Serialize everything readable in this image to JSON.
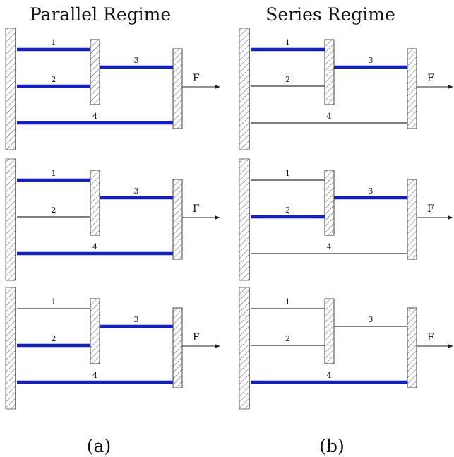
{
  "columns": [
    {
      "title": "Parallel Regime",
      "caption": "(a)",
      "panels": [
        {
          "bars": [
            {
              "label": "1",
              "active": true
            },
            {
              "label": "2",
              "active": true
            },
            {
              "label": "3",
              "active": true
            },
            {
              "label": "4",
              "active": true
            }
          ],
          "force_label": "F"
        },
        {
          "bars": [
            {
              "label": "1",
              "active": true
            },
            {
              "label": "2",
              "active": false
            },
            {
              "label": "3",
              "active": true
            },
            {
              "label": "4",
              "active": true
            }
          ],
          "force_label": "F"
        },
        {
          "bars": [
            {
              "label": "1",
              "active": false
            },
            {
              "label": "2",
              "active": true
            },
            {
              "label": "3",
              "active": true
            },
            {
              "label": "4",
              "active": true
            }
          ],
          "force_label": "F"
        }
      ]
    },
    {
      "title": "Series Regime",
      "caption": "(b)",
      "panels": [
        {
          "bars": [
            {
              "label": "1",
              "active": true
            },
            {
              "label": "2",
              "active": false
            },
            {
              "label": "3",
              "active": true
            },
            {
              "label": "4",
              "active": false
            }
          ],
          "force_label": "F"
        },
        {
          "bars": [
            {
              "label": "1",
              "active": false
            },
            {
              "label": "2",
              "active": true
            },
            {
              "label": "3",
              "active": true
            },
            {
              "label": "4",
              "active": false
            }
          ],
          "force_label": "F"
        },
        {
          "bars": [
            {
              "label": "1",
              "active": false
            },
            {
              "label": "2",
              "active": false
            },
            {
              "label": "3",
              "active": false
            },
            {
              "label": "4",
              "active": true
            }
          ],
          "force_label": "F"
        }
      ]
    }
  ],
  "colors": {
    "active_bar": "#1520b8",
    "inactive_bar": "#333333",
    "hatch": "#555555"
  }
}
